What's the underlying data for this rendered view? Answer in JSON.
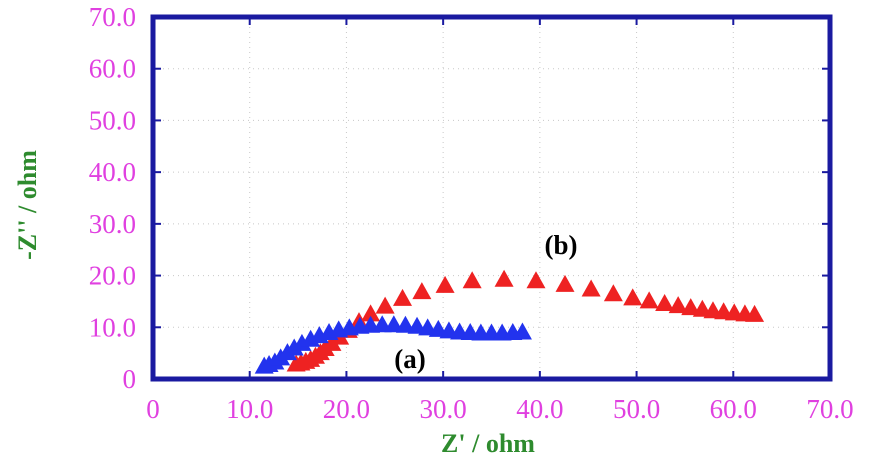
{
  "chart_data": {
    "type": "scatter",
    "xlabel": "Z' / ohm",
    "ylabel": "-Z'' / ohm",
    "xlim": [
      0,
      70
    ],
    "ylim": [
      0,
      70
    ],
    "xticks": [
      "0",
      "10.0",
      "20.0",
      "30.0",
      "40.0",
      "50.0",
      "60.0",
      "70.0"
    ],
    "yticks": [
      "0",
      "10.0",
      "20.0",
      "30.0",
      "40.0",
      "50.0",
      "60.0",
      "70.0"
    ],
    "grid": true,
    "annotations": [
      {
        "text": "(a)",
        "x": 26.5,
        "y": 4.0
      },
      {
        "text": "(b)",
        "x": 42.5,
        "y": 25.0
      }
    ],
    "series": [
      {
        "label": "(b)",
        "color": "#ee2222",
        "marker": "triangle",
        "points": [
          [
            14.8,
            2.8
          ],
          [
            15.3,
            3.0
          ],
          [
            15.8,
            3.3
          ],
          [
            16.3,
            3.7
          ],
          [
            16.8,
            4.3
          ],
          [
            17.3,
            5.0
          ],
          [
            17.8,
            5.8
          ],
          [
            18.5,
            6.8
          ],
          [
            19.3,
            8.0
          ],
          [
            20.2,
            9.3
          ],
          [
            21.3,
            11.0
          ],
          [
            22.5,
            12.5
          ],
          [
            24.0,
            14.0
          ],
          [
            25.8,
            15.5
          ],
          [
            27.8,
            16.8
          ],
          [
            30.2,
            18.0
          ],
          [
            33.0,
            18.9
          ],
          [
            36.3,
            19.2
          ],
          [
            39.6,
            18.9
          ],
          [
            42.6,
            18.2
          ],
          [
            45.3,
            17.3
          ],
          [
            47.6,
            16.4
          ],
          [
            49.6,
            15.6
          ],
          [
            51.3,
            15.0
          ],
          [
            52.9,
            14.5
          ],
          [
            54.3,
            14.1
          ],
          [
            55.6,
            13.7
          ],
          [
            56.8,
            13.4
          ],
          [
            57.9,
            13.1
          ],
          [
            59.0,
            12.9
          ],
          [
            60.1,
            12.7
          ],
          [
            61.2,
            12.5
          ],
          [
            62.2,
            12.4
          ]
        ]
      },
      {
        "label": "(a)",
        "color": "#2233ee",
        "marker": "triangle",
        "points": [
          [
            11.5,
            2.4
          ],
          [
            12.0,
            2.7
          ],
          [
            12.6,
            3.2
          ],
          [
            13.2,
            4.0
          ],
          [
            13.9,
            5.0
          ],
          [
            14.6,
            5.9
          ],
          [
            15.4,
            6.8
          ],
          [
            16.3,
            7.6
          ],
          [
            17.2,
            8.3
          ],
          [
            18.2,
            8.9
          ],
          [
            19.2,
            9.4
          ],
          [
            20.3,
            9.8
          ],
          [
            21.4,
            10.1
          ],
          [
            22.5,
            10.3
          ],
          [
            23.7,
            10.4
          ],
          [
            24.9,
            10.4
          ],
          [
            26.1,
            10.3
          ],
          [
            27.3,
            10.1
          ],
          [
            28.4,
            9.8
          ],
          [
            29.5,
            9.5
          ],
          [
            30.6,
            9.2
          ],
          [
            31.7,
            9.0
          ],
          [
            32.8,
            8.9
          ],
          [
            33.9,
            8.8
          ],
          [
            35.0,
            8.8
          ],
          [
            36.1,
            8.8
          ],
          [
            37.2,
            8.9
          ],
          [
            38.2,
            9.0
          ]
        ]
      }
    ]
  }
}
